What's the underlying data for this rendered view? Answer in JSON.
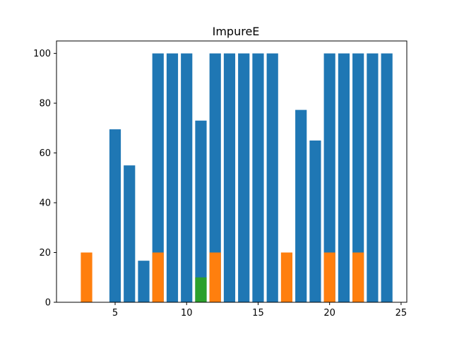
{
  "chart_data": {
    "type": "bar",
    "title": "ImpureE",
    "xlabel": "",
    "ylabel": "",
    "xlim": [
      0.9,
      25.4
    ],
    "ylim": [
      0,
      105
    ],
    "xticks": [
      5,
      10,
      15,
      20,
      25
    ],
    "yticks": [
      0,
      20,
      40,
      60,
      80,
      100
    ],
    "grid": false,
    "bar_width": 0.8,
    "series": [
      {
        "color": "#1f77b4",
        "x": [
          5,
          6,
          7,
          8,
          9,
          10,
          11,
          12,
          13,
          14,
          15,
          16,
          18,
          19,
          20,
          21,
          22,
          23,
          24
        ],
        "values": [
          69.5,
          55,
          16.7,
          100,
          100,
          100,
          73,
          100,
          100,
          100,
          100,
          100,
          77.3,
          65,
          100,
          100,
          100,
          100,
          100
        ]
      },
      {
        "color": "#ff7f0e",
        "x": [
          3,
          8,
          12,
          17,
          20,
          22
        ],
        "values": [
          20,
          20,
          20,
          20,
          20,
          20
        ]
      },
      {
        "color": "#2ca02c",
        "x": [
          11
        ],
        "values": [
          10
        ]
      }
    ]
  }
}
